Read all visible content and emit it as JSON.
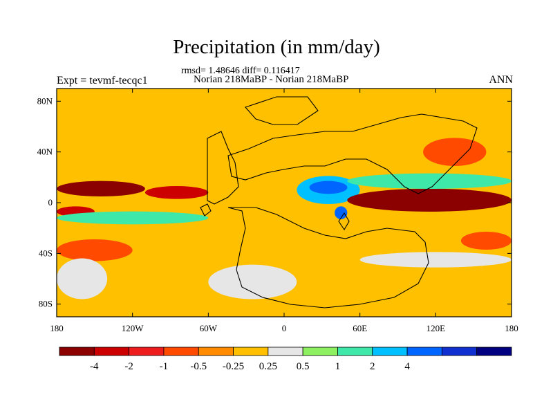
{
  "title": "Precipitation (in mm/day)",
  "stats": "rmsd= 1.48646 diff= 0.116417",
  "subtitle": "Norian 218MaBP - Norian 218MaBP",
  "experiment": "Expt = tevmf-tecqc1",
  "season": "ANN",
  "axes": {
    "y_ticks": [
      "80N",
      "40N",
      "0",
      "40S",
      "80S"
    ],
    "x_ticks": [
      "180",
      "120W",
      "60W",
      "0",
      "60E",
      "120E",
      "180"
    ]
  },
  "colorbar": {
    "labels": [
      "-4",
      "-2",
      "-1",
      "-0.5",
      "-0.25",
      "0.25",
      "0.5",
      "1",
      "2",
      "4"
    ],
    "colors": [
      "#8b0000",
      "#cc0000",
      "#ee1c1c",
      "#ff4a00",
      "#ff8c00",
      "#ffc000",
      "#e6e6e6",
      "#8cf060",
      "#3ee8a8",
      "#00c0ff",
      "#0064ff",
      "#1030d0",
      "#000080"
    ]
  },
  "chart_data": {
    "type": "heatmap",
    "title": "Precipitation (in mm/day)",
    "subtitle": "Norian 218MaBP - Norian 218MaBP",
    "levels": [
      -4,
      -2,
      -1,
      -0.5,
      -0.25,
      0.25,
      0.5,
      1,
      2,
      4
    ],
    "xlim": [
      -180,
      180
    ],
    "ylim": [
      -90,
      90
    ],
    "regions": [
      {
        "lon": [
          -180,
          -110
        ],
        "lat": [
          6,
          16
        ],
        "value": -5
      },
      {
        "lon": [
          -110,
          -60
        ],
        "lat": [
          4,
          12
        ],
        "value": -3
      },
      {
        "lon": [
          -180,
          -150
        ],
        "lat": [
          -10,
          -4
        ],
        "value": -3
      },
      {
        "lon": [
          -180,
          -60
        ],
        "lat": [
          -16,
          -8
        ],
        "value": 1.5
      },
      {
        "lon": [
          -180,
          -120
        ],
        "lat": [
          -45,
          -30
        ],
        "value": -1
      },
      {
        "lon": [
          -180,
          -140
        ],
        "lat": [
          -75,
          -45
        ],
        "value": 0.4
      },
      {
        "lon": [
          -60,
          10
        ],
        "lat": [
          -75,
          -50
        ],
        "value": 0.4
      },
      {
        "lon": [
          10,
          60
        ],
        "lat": [
          0,
          20
        ],
        "value": 3
      },
      {
        "lon": [
          20,
          50
        ],
        "lat": [
          8,
          16
        ],
        "value": 5
      },
      {
        "lon": [
          40,
          50
        ],
        "lat": [
          -12,
          -4
        ],
        "value": 5
      },
      {
        "lon": [
          50,
          180
        ],
        "lat": [
          -6,
          10
        ],
        "value": -5
      },
      {
        "lon": [
          50,
          180
        ],
        "lat": [
          12,
          22
        ],
        "value": 1.5
      },
      {
        "lon": [
          110,
          160
        ],
        "lat": [
          30,
          50
        ],
        "value": -1
      },
      {
        "lon": [
          140,
          180
        ],
        "lat": [
          -36,
          -24
        ],
        "value": -1
      },
      {
        "lon": [
          60,
          180
        ],
        "lat": [
          -50,
          -40
        ],
        "value": 0.4
      }
    ]
  }
}
